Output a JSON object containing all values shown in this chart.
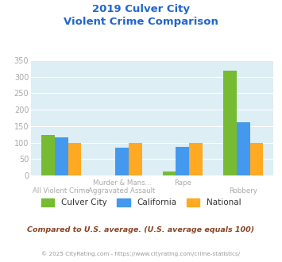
{
  "title_line1": "2019 Culver City",
  "title_line2": "Violent Crime Comparison",
  "cat_line1": [
    "All Violent Crime",
    "Murder & Mans...",
    "Rape",
    "Robbery"
  ],
  "cat_line2": [
    "",
    "Aggravated Assault",
    "",
    ""
  ],
  "culver_city": [
    122,
    0,
    12,
    318
  ],
  "california": [
    117,
    85,
    88,
    162
  ],
  "national": [
    100,
    100,
    100,
    100
  ],
  "color_culver": "#77bb33",
  "color_california": "#4499ee",
  "color_national": "#ffaa22",
  "ylim": [
    0,
    350
  ],
  "yticks": [
    0,
    50,
    100,
    150,
    200,
    250,
    300,
    350
  ],
  "bg_color": "#ddeef4",
  "subtitle_note": "Compared to U.S. average. (U.S. average equals 100)",
  "footer": "© 2025 CityRating.com - https://www.cityrating.com/crime-statistics/",
  "legend_labels": [
    "Culver City",
    "California",
    "National"
  ],
  "title_color": "#2266cc",
  "subtitle_color": "#884422",
  "footer_color": "#999999",
  "tick_color": "#aaaaaa",
  "ytick_color": "#aaaaaa"
}
